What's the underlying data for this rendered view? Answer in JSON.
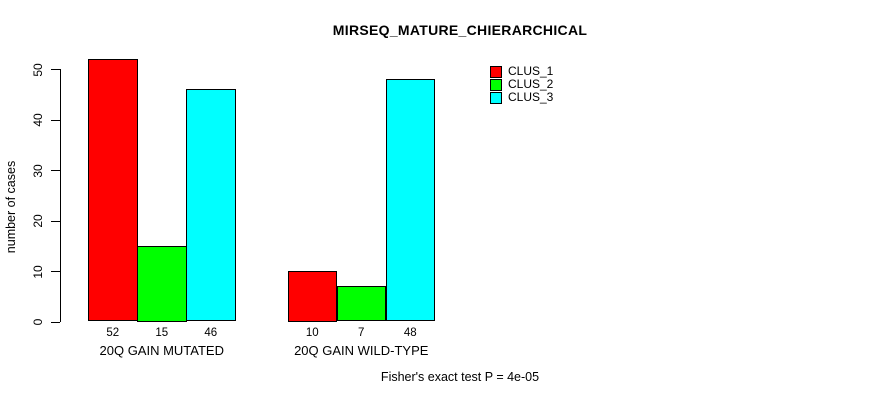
{
  "chart_data": {
    "type": "bar",
    "title": "MIRSEQ_MATURE_CHIERARCHICAL",
    "ylabel": "number of cases",
    "xlabel": "",
    "caption": "Fisher's exact test P = 4e-05",
    "ylim": [
      0,
      50
    ],
    "yticks": [
      0,
      10,
      20,
      30,
      40,
      50
    ],
    "grid": false,
    "legend_position": "top-right",
    "categories": [
      "20Q GAIN MUTATED",
      "20Q GAIN WILD-TYPE"
    ],
    "series": [
      {
        "name": "CLUS_1",
        "color": "#ff0000",
        "values": [
          52,
          10
        ]
      },
      {
        "name": "CLUS_2",
        "color": "#00ff00",
        "values": [
          15,
          7
        ]
      },
      {
        "name": "CLUS_3",
        "color": "#00ffff",
        "values": [
          46,
          48
        ]
      }
    ],
    "bar_value_labels": [
      [
        52,
        15,
        46
      ],
      [
        10,
        7,
        48
      ]
    ],
    "colors": {
      "background": "#ffffff",
      "axis": "#000000",
      "text": "#000000"
    }
  }
}
